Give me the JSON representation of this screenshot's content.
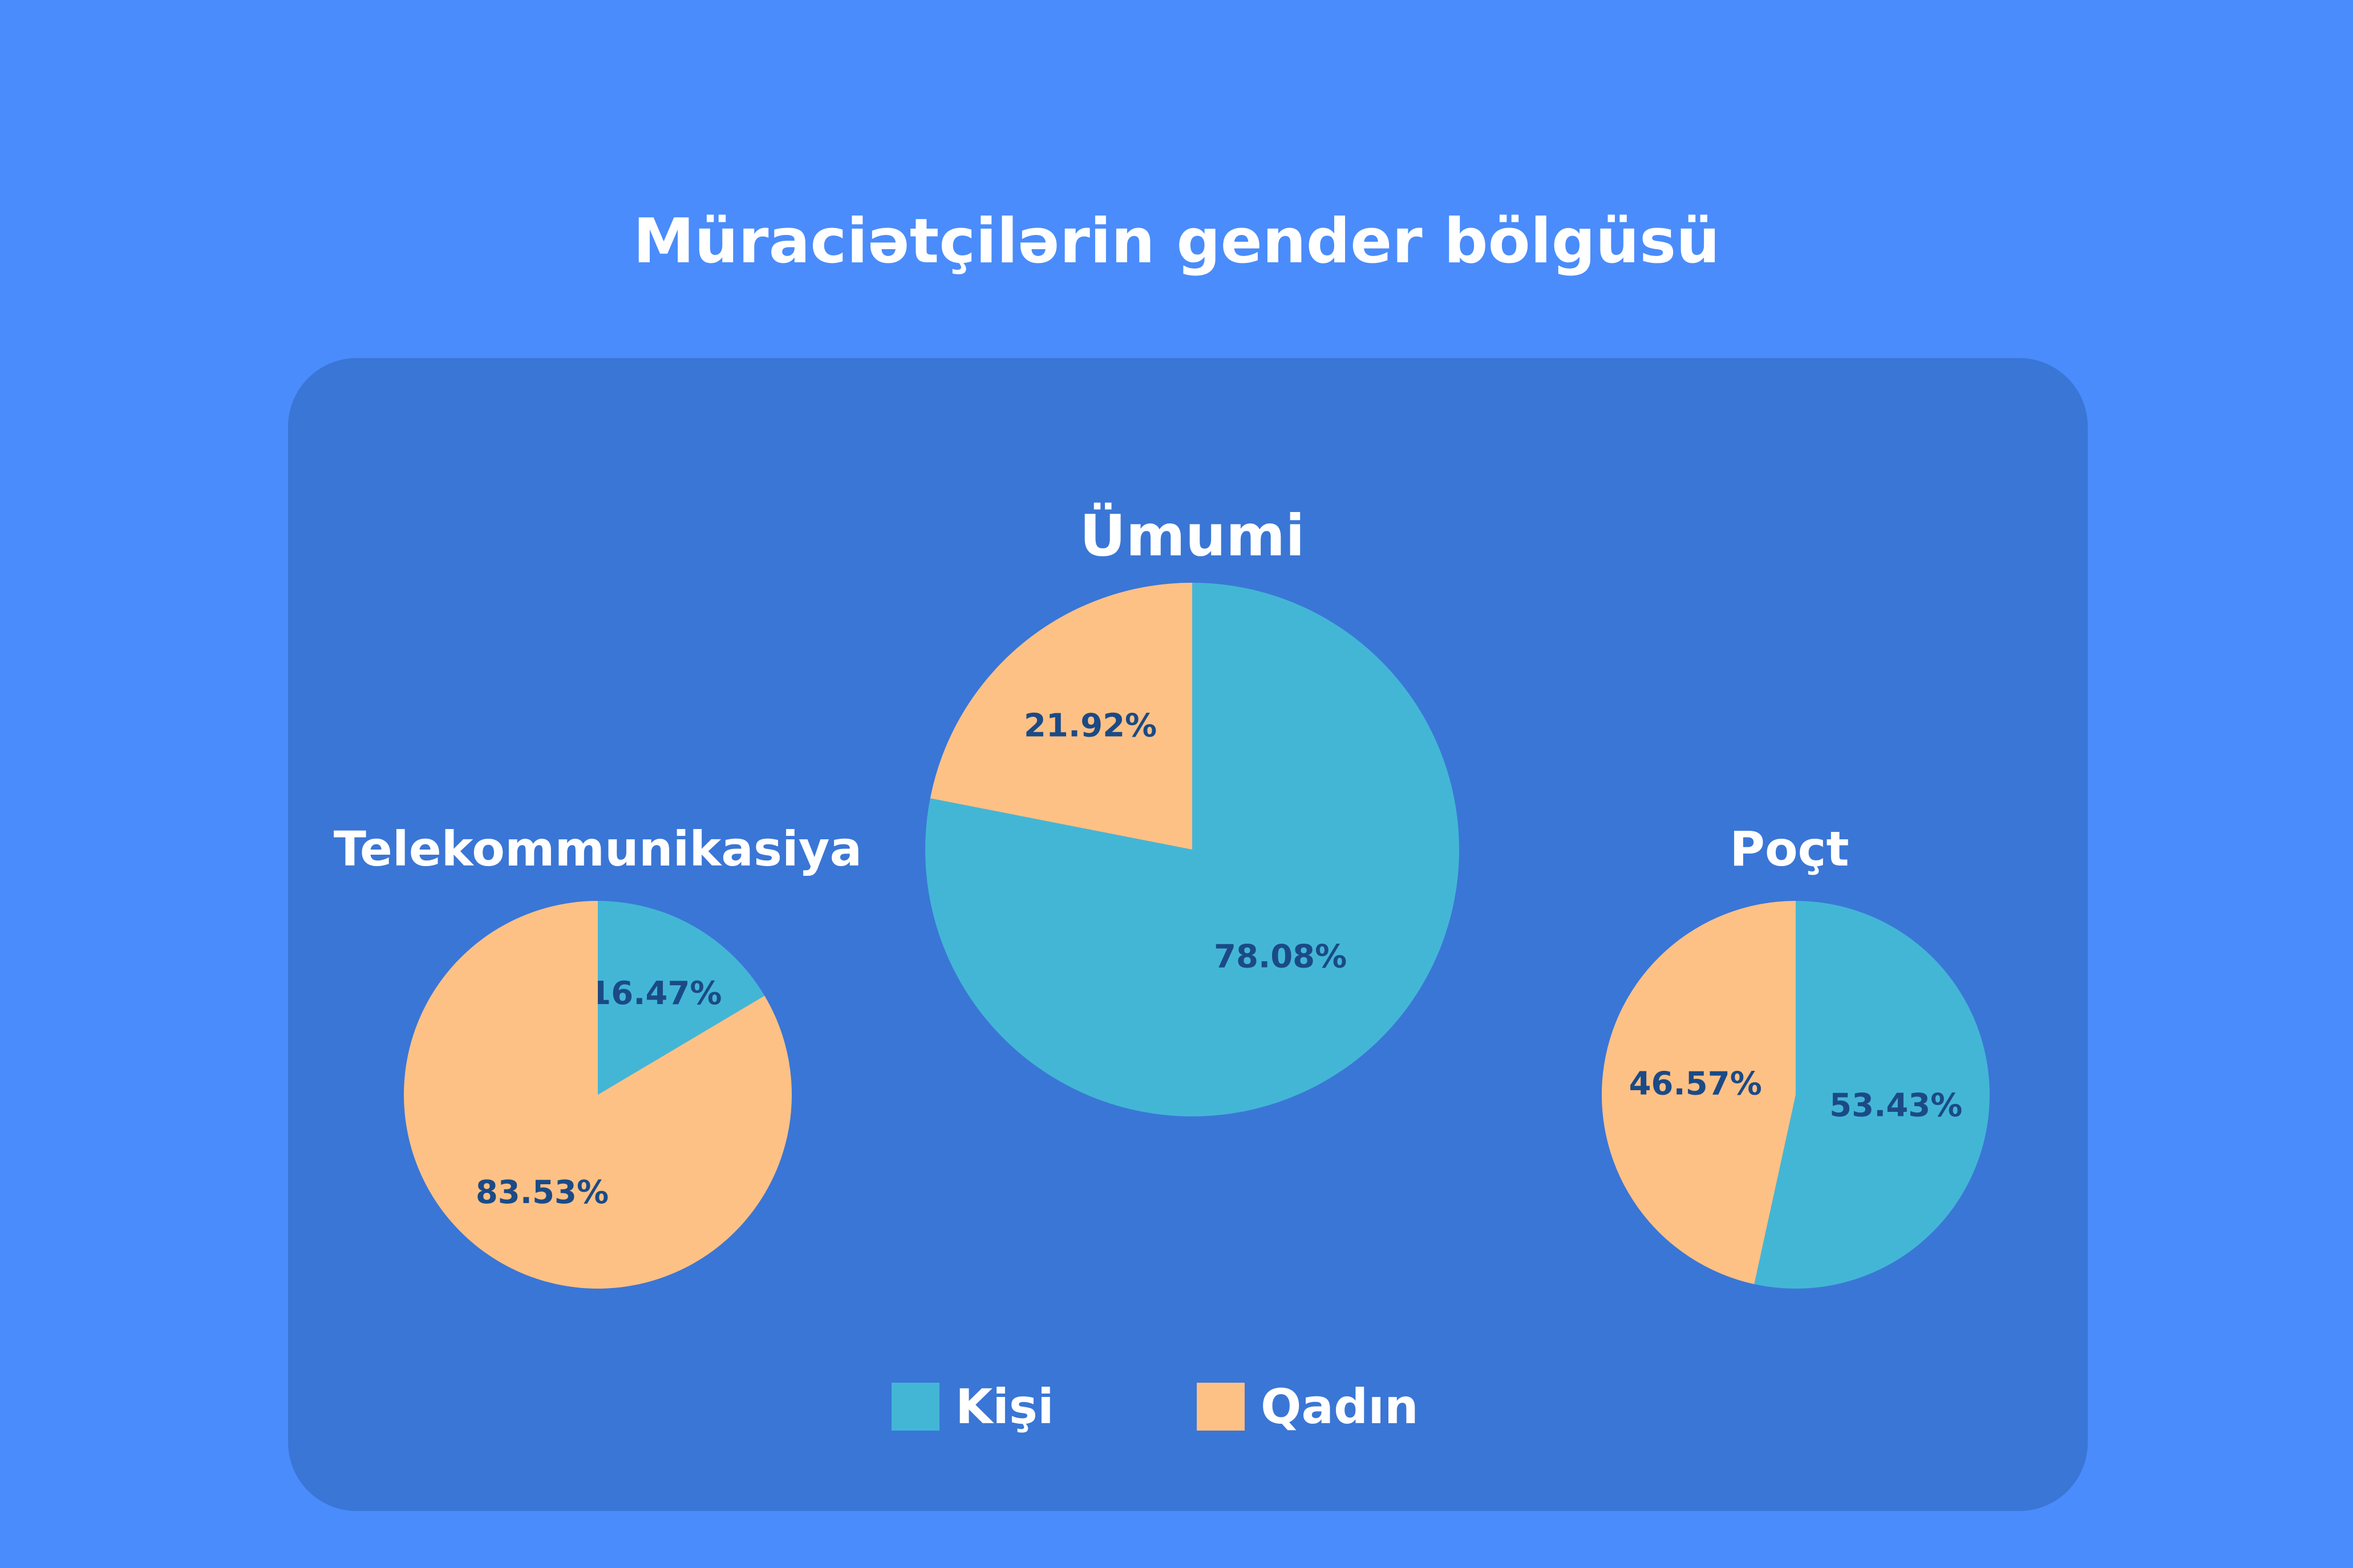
{
  "colors": {
    "background": "#4a8cfb",
    "panel": "#3a76d6",
    "male": "#43b6d6",
    "female": "#fec185",
    "label_text": "#1b4a86",
    "title_text": "#ffffff"
  },
  "title": "Müraciətçilərin gender bölgüsü",
  "legend": {
    "male_label": "Kişi",
    "female_label": "Qadın"
  },
  "chart_data": [
    {
      "type": "pie",
      "title": "Ümumi",
      "categories": [
        "Kişi",
        "Qadın"
      ],
      "values": [
        78.08,
        21.92
      ],
      "labels": [
        "78.08%",
        "21.92%"
      ]
    },
    {
      "type": "pie",
      "title": "Telekommunikasiya",
      "categories": [
        "Kişi",
        "Qadın"
      ],
      "values": [
        16.47,
        83.53
      ],
      "labels": [
        "16.47%",
        "83.53%"
      ]
    },
    {
      "type": "pie",
      "title": "Poçt",
      "categories": [
        "Kişi",
        "Qadın"
      ],
      "values": [
        53.43,
        46.57
      ],
      "labels": [
        "53.43%",
        "46.57%"
      ]
    }
  ]
}
